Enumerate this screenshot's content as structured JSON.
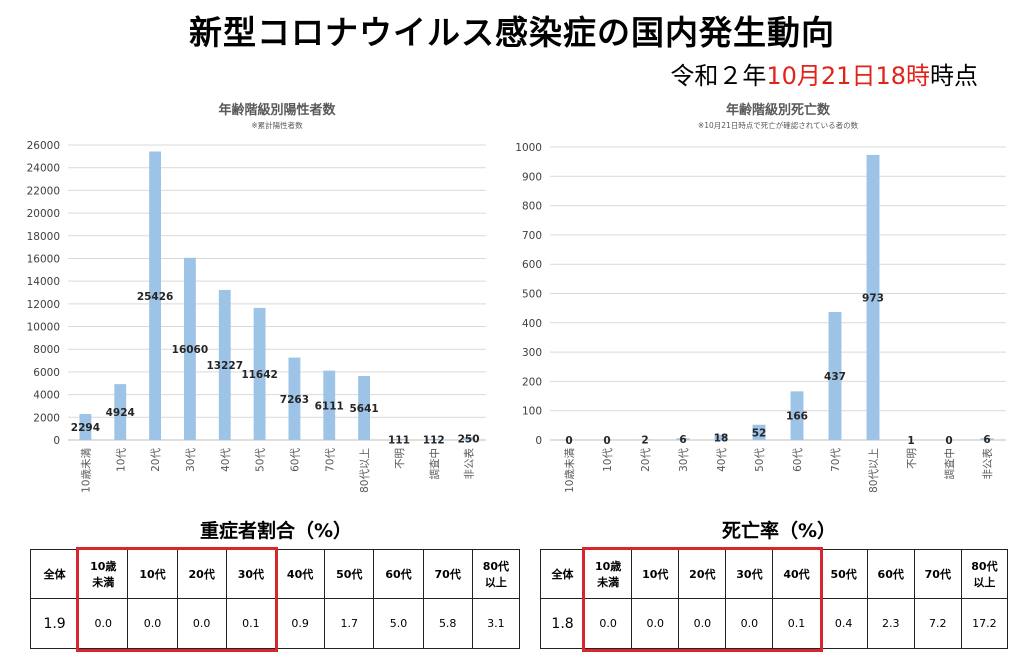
{
  "title": "新型コロナウイルス感染症の国内発生動向",
  "as_of": {
    "prefix": "令和２年",
    "date": "10月21日18時",
    "suffix": "時点"
  },
  "chart_data": [
    {
      "type": "bar",
      "title": "年齢階級別陽性者数",
      "subtitle": "※累計陽性者数",
      "categories": [
        "10歳未満",
        "10代",
        "20代",
        "30代",
        "40代",
        "50代",
        "60代",
        "70代",
        "80代以上",
        "不明",
        "調査中",
        "非公表"
      ],
      "values": [
        2294,
        4924,
        25426,
        16060,
        13227,
        11642,
        7263,
        6111,
        5641,
        111,
        112,
        250
      ],
      "ylim": [
        0,
        26000
      ],
      "yticks": [
        0,
        2000,
        4000,
        6000,
        8000,
        10000,
        12000,
        14000,
        16000,
        18000,
        20000,
        22000,
        24000,
        26000
      ],
      "grid": true,
      "color": "#9dc3e6"
    },
    {
      "type": "bar",
      "title": "年齢階級別死亡数",
      "subtitle": "※10月21日時点で死亡が確認されている者の数",
      "categories": [
        "10歳未満",
        "10代",
        "20代",
        "30代",
        "40代",
        "50代",
        "60代",
        "70代",
        "80代以上",
        "不明",
        "調査中",
        "非公表"
      ],
      "values": [
        0,
        0,
        2,
        6,
        18,
        52,
        166,
        437,
        973,
        1,
        0,
        6
      ],
      "ylim": [
        0,
        1000
      ],
      "yticks": [
        0,
        100,
        200,
        300,
        400,
        500,
        600,
        700,
        800,
        900,
        1000
      ],
      "grid": true,
      "color": "#9dc3e6"
    },
    {
      "type": "table",
      "title": "重症者割合（%）",
      "columns": [
        "全体",
        "10歳\n未満",
        "10代",
        "20代",
        "30代",
        "40代",
        "50代",
        "60代",
        "70代",
        "80代\n以上"
      ],
      "values": [
        "1.9",
        "0.0",
        "0.0",
        "0.0",
        "0.1",
        "0.9",
        "1.7",
        "5.0",
        "5.8",
        "3.1"
      ],
      "highlight_columns": [
        "10歳\n未満",
        "10代",
        "20代",
        "30代"
      ],
      "highlight_color": "#d8262e"
    },
    {
      "type": "table",
      "title": "死亡率（%）",
      "columns": [
        "全体",
        "10歳\n未満",
        "10代",
        "20代",
        "30代",
        "40代",
        "50代",
        "60代",
        "70代",
        "80代\n以上"
      ],
      "values": [
        "1.8",
        "0.0",
        "0.0",
        "0.0",
        "0.0",
        "0.1",
        "0.4",
        "2.3",
        "7.2",
        "17.2"
      ],
      "highlight_columns": [
        "10歳\n未満",
        "10代",
        "20代",
        "30代",
        "40代"
      ],
      "highlight_color": "#d8262e"
    }
  ]
}
